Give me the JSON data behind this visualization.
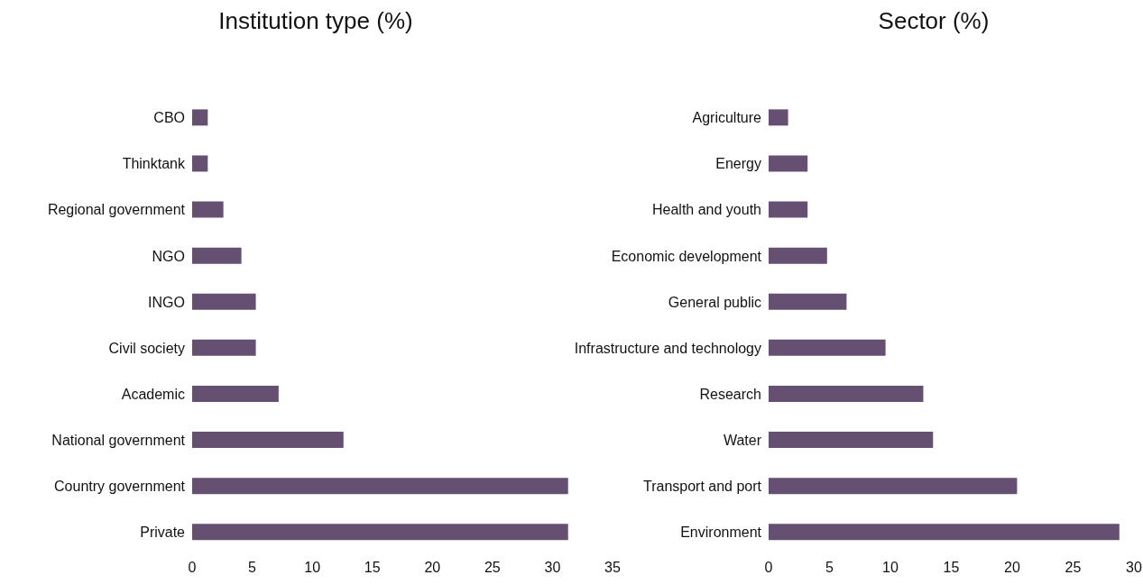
{
  "chart_data": [
    {
      "type": "bar",
      "orientation": "horizontal",
      "title": "Institution type (%)",
      "categories": [
        "CBO",
        "Thinktank",
        "Regional government",
        "NGO",
        "INGO",
        "Civil society",
        "Academic",
        "National government",
        "Country government",
        "Private"
      ],
      "values": [
        1.3,
        1.3,
        2.6,
        4.1,
        5.3,
        5.3,
        7.2,
        12.6,
        31.3,
        31.3
      ],
      "color": "#655072",
      "xlim": [
        0,
        35
      ],
      "xticks": [
        0,
        5,
        10,
        15,
        20,
        25,
        30,
        35
      ],
      "grid": false,
      "legend": false
    },
    {
      "type": "bar",
      "orientation": "horizontal",
      "title": "Sector (%)",
      "categories": [
        "Agriculture",
        "Energy",
        "Health and youth",
        "Economic development",
        "General public",
        "Infrastructure and technology",
        "Research",
        "Water",
        "Transport and port",
        "Environment"
      ],
      "values": [
        1.6,
        3.2,
        3.2,
        4.8,
        6.4,
        9.6,
        12.7,
        13.5,
        20.4,
        28.8
      ],
      "color": "#655072",
      "xlim": [
        0,
        30
      ],
      "xticks": [
        0,
        5,
        10,
        15,
        20,
        25,
        30
      ],
      "grid": false,
      "legend": false
    }
  ]
}
